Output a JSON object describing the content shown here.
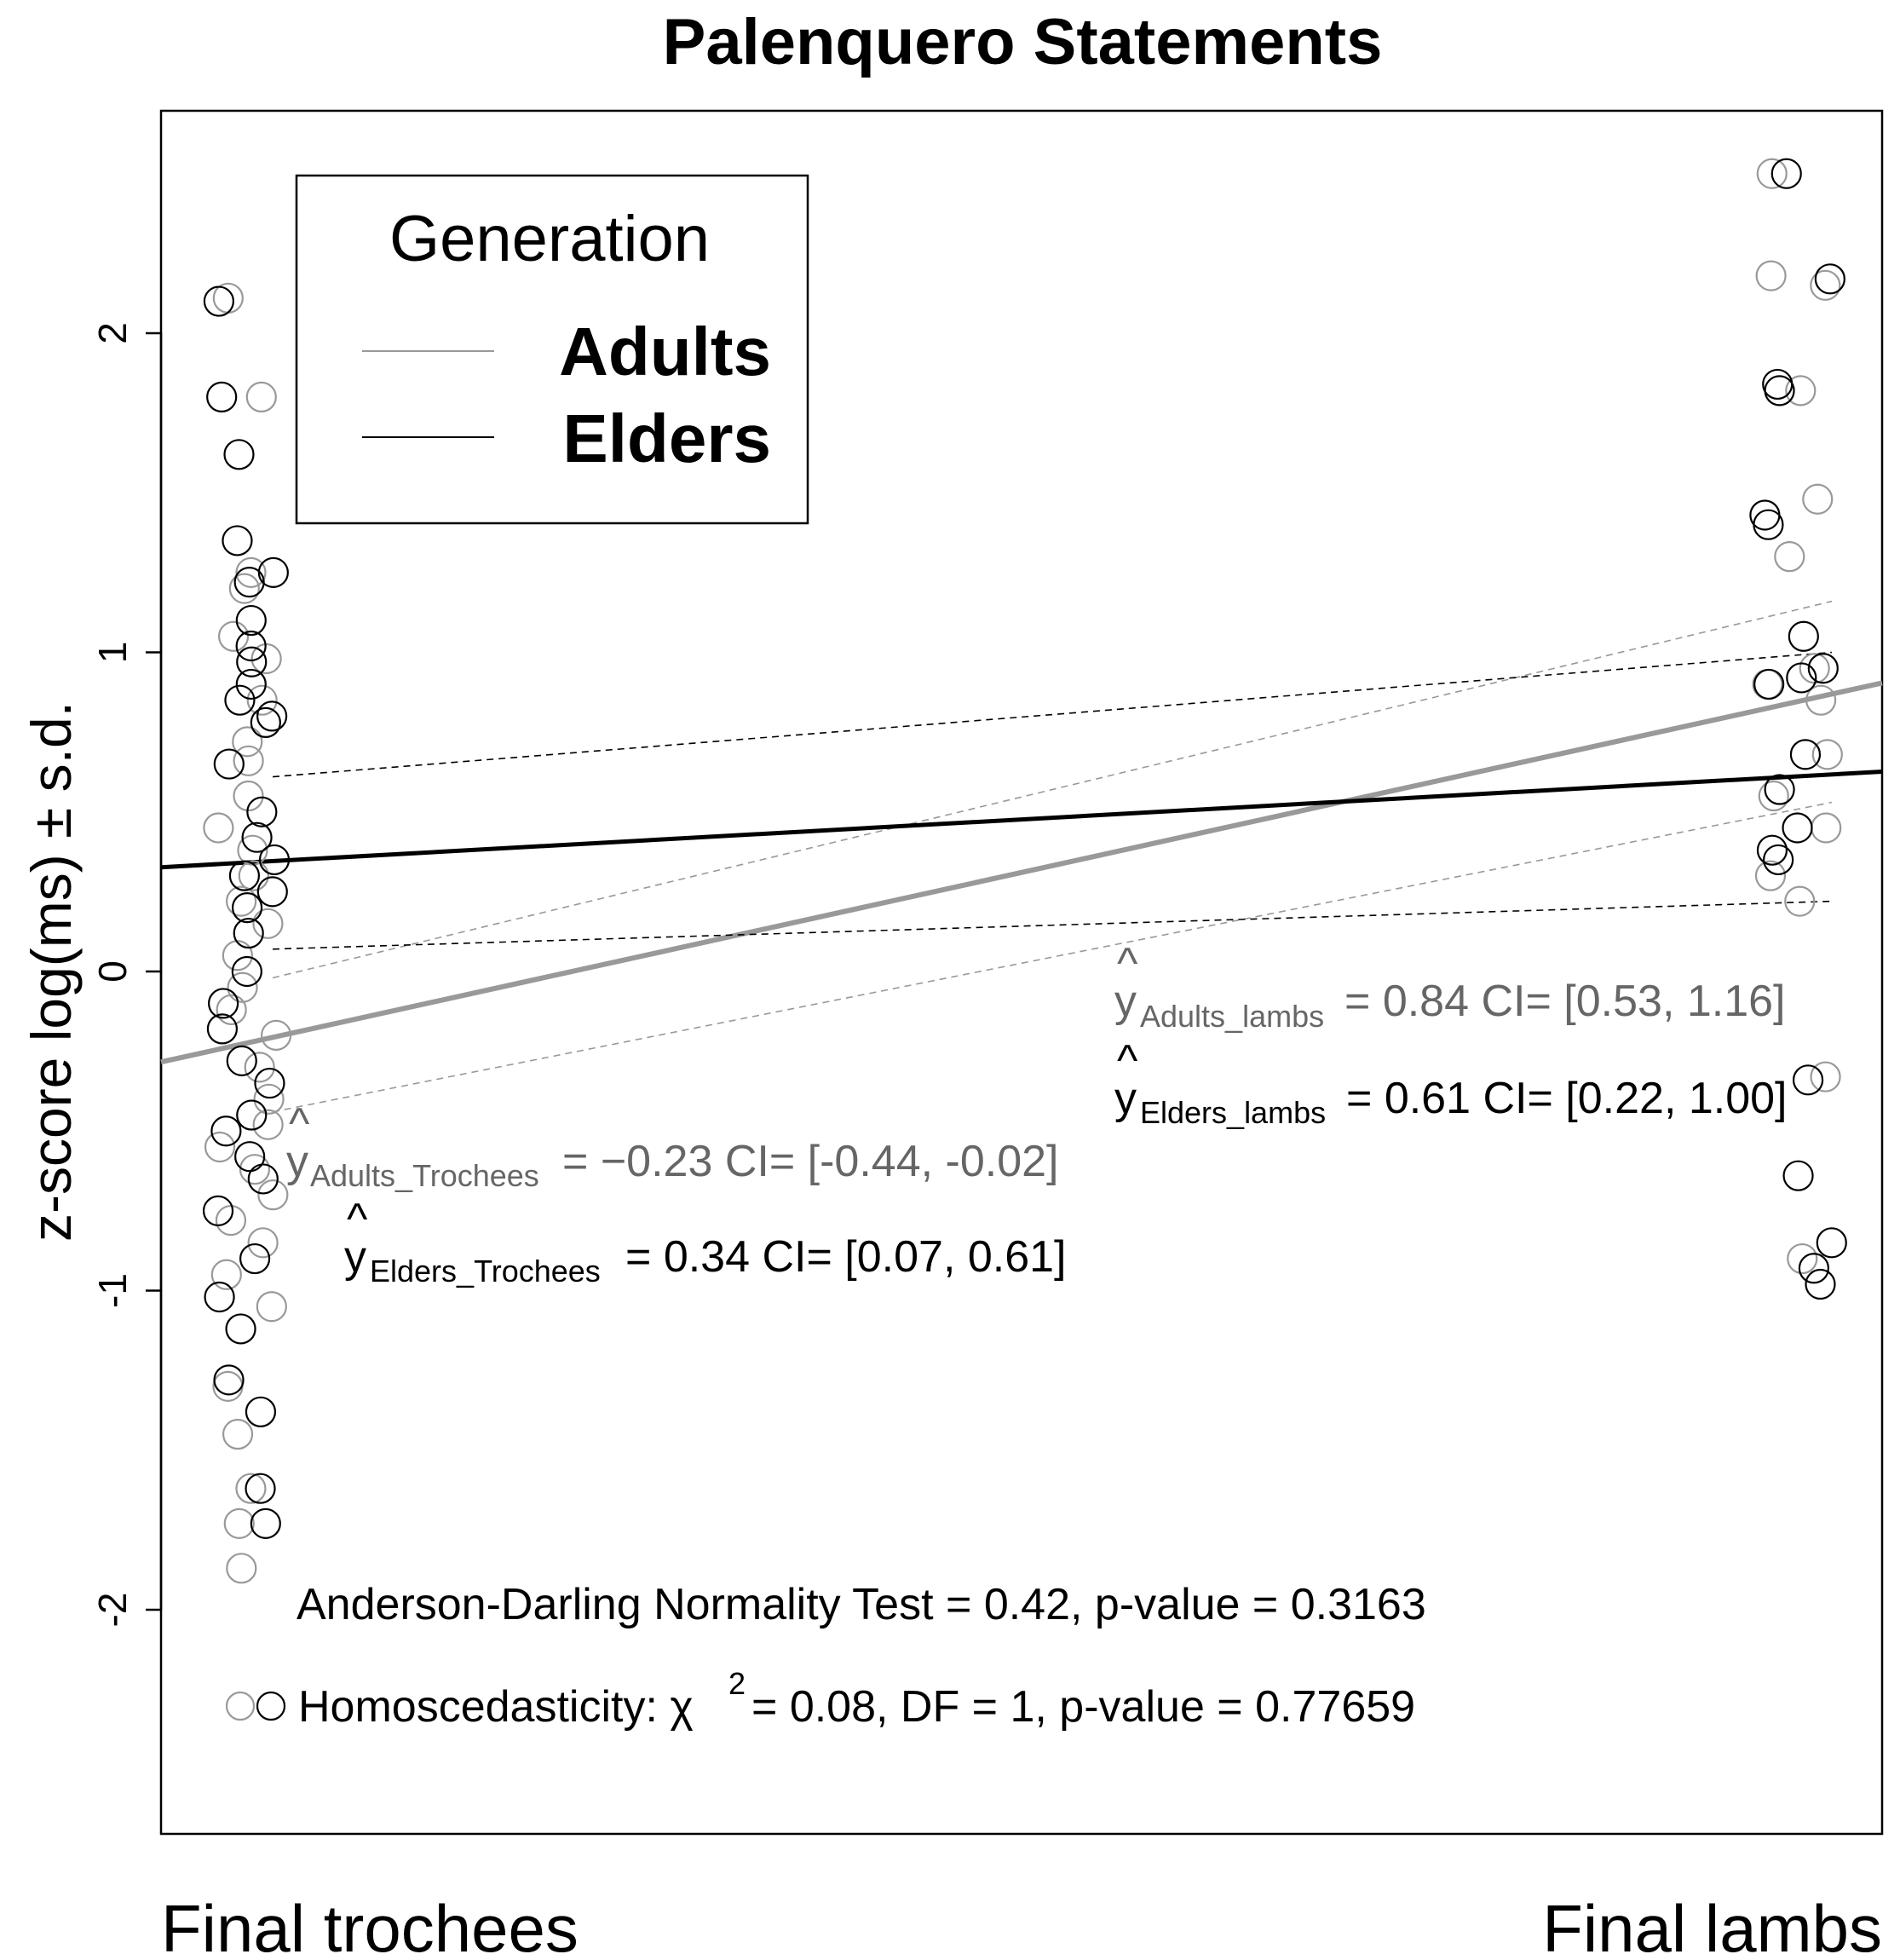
{
  "chart_data": {
    "type": "scatter",
    "title": "Palenquero Statements",
    "xlabel": "",
    "ylabel": "z-score log(ms) ± s.d.",
    "categories": [
      "Final trochees",
      "Final lambs"
    ],
    "ylim": [
      -2.7,
      2.7
    ],
    "yticks": [
      -2,
      -1,
      0,
      1,
      2
    ],
    "yticklabels": [
      "-2",
      "-1",
      "0",
      "1",
      "2"
    ],
    "legend": {
      "title": "Generation",
      "position": "top-left",
      "entries": [
        "Adults",
        "Elders"
      ]
    },
    "series": [
      {
        "name": "Adults",
        "color": "#999999",
        "fit": {
          "trochees": -0.23,
          "lambs": 0.84
        },
        "ci_trochees": [
          -0.44,
          -0.02
        ],
        "ci_lambs": [
          0.53,
          1.16
        ],
        "points_trochees": [
          2.11,
          1.8,
          1.25,
          1.2,
          1.05,
          0.98,
          0.85,
          0.72,
          0.66,
          0.55,
          0.45,
          0.38,
          0.3,
          0.22,
          0.15,
          0.05,
          -0.05,
          -0.12,
          -0.2,
          -0.3,
          -0.4,
          -0.48,
          -0.55,
          -0.62,
          -0.7,
          -0.78,
          -0.85,
          -0.95,
          -1.05,
          -1.3,
          -1.45,
          -1.62,
          -1.73,
          -1.87
        ],
        "points_lambs": [
          2.5,
          2.18,
          2.15,
          1.82,
          1.48,
          1.3,
          0.95,
          0.9,
          0.85,
          0.68,
          0.55,
          0.45,
          0.3,
          0.22,
          -0.33,
          -0.9
        ]
      },
      {
        "name": "Elders",
        "color": "#000000",
        "fit": {
          "trochees": 0.34,
          "lambs": 0.61
        },
        "ci_trochees": [
          0.07,
          0.61
        ],
        "ci_lambs": [
          0.22,
          1.0
        ],
        "points_trochees": [
          2.1,
          1.8,
          1.62,
          1.35,
          1.25,
          1.22,
          1.1,
          1.02,
          0.97,
          0.9,
          0.85,
          0.8,
          0.78,
          0.65,
          0.5,
          0.42,
          0.35,
          0.3,
          0.25,
          0.2,
          0.12,
          0.0,
          -0.1,
          -0.18,
          -0.28,
          -0.35,
          -0.45,
          -0.5,
          -0.58,
          -0.65,
          -0.75,
          -0.9,
          -1.02,
          -1.12,
          -1.28,
          -1.38,
          -1.62,
          -1.73
        ],
        "points_lambs": [
          2.5,
          2.17,
          1.84,
          1.82,
          1.43,
          1.4,
          1.05,
          0.95,
          0.92,
          0.9,
          0.68,
          0.57,
          0.45,
          0.38,
          0.35,
          -0.34,
          -0.64,
          -0.85,
          -0.93,
          -0.98
        ]
      }
    ],
    "annotations": {
      "adults_lambs": {
        "yhat": "y",
        "sub": "Adults_lambs",
        "rest": "= 0.84 CI= [0.53, 1.16]"
      },
      "elders_lambs": {
        "yhat": "y",
        "sub": "Elders_lambs",
        "rest": "= 0.61 CI= [0.22, 1.00]"
      },
      "adults_trochees": {
        "yhat": "y",
        "sub": "Adults_Trochees",
        "rest": "= −0.23 CI= [-0.44, -0.02]"
      },
      "elders_trochees": {
        "yhat": "y",
        "sub": "Elders_Trochees",
        "rest": "= 0.34 CI= [0.07, 0.61]"
      },
      "normality": "Anderson-Darling Normality Test = 0.42,  p-value = 0.3163",
      "homoscedasticity_label": "Homoscedasticity: χ",
      "homoscedasticity_sup": "2",
      "homoscedasticity_rest": "= 0.08, DF = 1,  p-value = 0.77659"
    },
    "grid": false
  }
}
